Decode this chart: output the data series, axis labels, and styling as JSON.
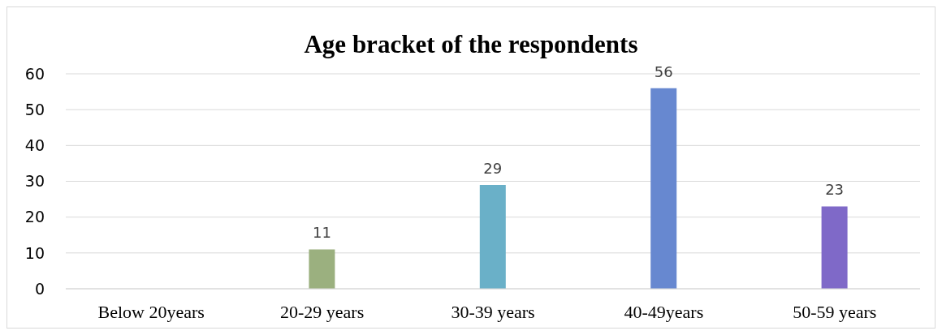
{
  "chart_data": {
    "type": "bar",
    "title": "Age bracket of the respondents",
    "categories": [
      "Below 20years",
      "20-29 years",
      "30-39 years",
      "40-49years",
      "50-59 years"
    ],
    "values": [
      0,
      11,
      29,
      56,
      23
    ],
    "colors": [
      "#a5a5a5",
      "#9bb07f",
      "#6ab0c8",
      "#6788d0",
      "#7f69c8"
    ],
    "value_labels": [
      null,
      "11",
      "29",
      "56",
      "23"
    ],
    "ylim": [
      0,
      60
    ],
    "yticks": [
      0,
      10,
      20,
      30,
      40,
      50,
      60
    ],
    "grid": "y",
    "legend": false
  }
}
